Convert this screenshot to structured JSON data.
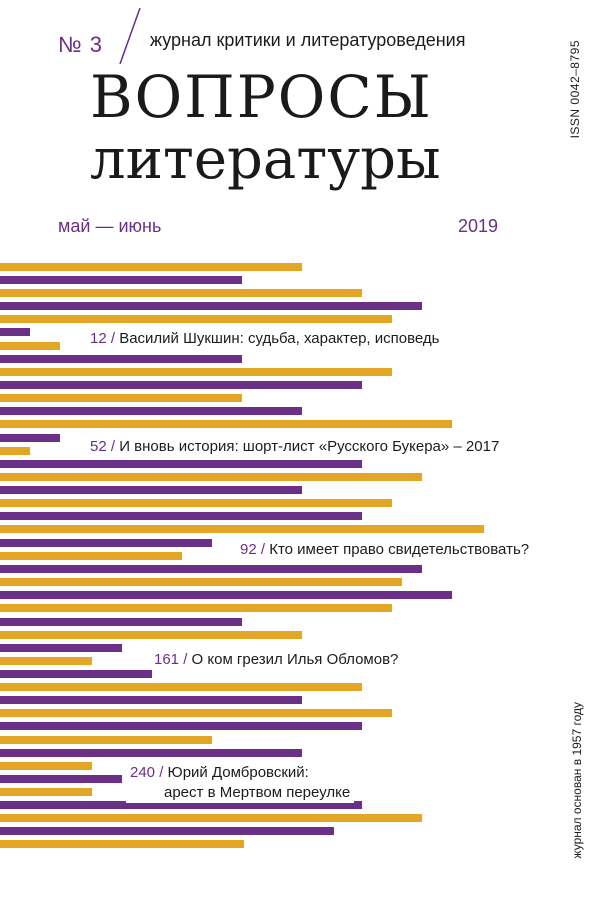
{
  "header": {
    "issue_number": "№ 3",
    "subtitle": "журнал критики и литературоведения",
    "title_line1": "ВОПРОСЫ",
    "title_line2": "литературы",
    "issn": "ISSN 0042–8795",
    "months": "май — июнь",
    "year": "2019"
  },
  "contents": [
    {
      "page": "12",
      "title": "Василий Шукшин: судьба, характер, исповедь"
    },
    {
      "page": "52",
      "title": "И вновь история: шорт-лист «Русского Букера» – 2017"
    },
    {
      "page": "92",
      "title": "Кто имеет право свидетельствовать?"
    },
    {
      "page": "161",
      "title": "О ком грезил Илья Обломов?"
    },
    {
      "page": "240",
      "title": "Юрий Домбровский:",
      "title2": "арест в Мертвом переулке"
    }
  ],
  "footer": {
    "founded": "журнал основан в 1957 году"
  },
  "colors": {
    "purple": "#6a2f86",
    "gold": "#e3a627"
  }
}
